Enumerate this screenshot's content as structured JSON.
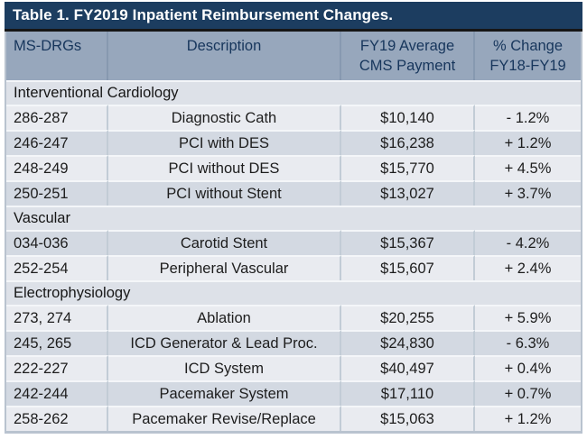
{
  "title": "Table 1. FY2019 Inpatient Reimbursement Changes.",
  "columns": [
    {
      "line1": "MS-DRGs",
      "line2": ""
    },
    {
      "line1": "Description",
      "line2": ""
    },
    {
      "line1": "FY19 Average",
      "line2": "CMS Payment"
    },
    {
      "line1": "% Change",
      "line2": "FY18-FY19"
    }
  ],
  "sections": [
    {
      "name": "Interventional Cardiology",
      "rows": [
        {
          "drg": "286-287",
          "description": "Diagnostic Cath",
          "payment": "$10,140",
          "change": "- 1.2%"
        },
        {
          "drg": "246-247",
          "description": "PCI with DES",
          "payment": "$16,238",
          "change": "+ 1.2%"
        },
        {
          "drg": "248-249",
          "description": "PCI without DES",
          "payment": "$15,770",
          "change": "+ 4.5%"
        },
        {
          "drg": "250-251",
          "description": "PCI without Stent",
          "payment": "$13,027",
          "change": "+ 3.7%"
        }
      ]
    },
    {
      "name": "Vascular",
      "rows": [
        {
          "drg": "034-036",
          "description": "Carotid Stent",
          "payment": "$15,367",
          "change": "- 4.2%"
        },
        {
          "drg": "252-254",
          "description": "Peripheral Vascular",
          "payment": "$15,607",
          "change": "+ 2.4%"
        }
      ]
    },
    {
      "name": "Electrophysiology",
      "rows": [
        {
          "drg": "273, 274",
          "description": "Ablation",
          "payment": "$20,255",
          "change": "+ 5.9%"
        },
        {
          "drg": "245, 265",
          "description": "ICD Generator & Lead Proc.",
          "payment": "$24,830",
          "change": "- 6.3%"
        },
        {
          "drg": "222-227",
          "description": "ICD System",
          "payment": "$40,497",
          "change": "+ 0.4%"
        },
        {
          "drg": "242-244",
          "description": "Pacemaker System",
          "payment": "$17,110",
          "change": "+ 0.7%"
        },
        {
          "drg": "258-262",
          "description": "Pacemaker Revise/Replace",
          "payment": "$15,063",
          "change": "+ 1.2%"
        }
      ]
    }
  ],
  "colors": {
    "title_bar": "#1c3d60",
    "title_text": "#ffffff",
    "header_bg": "#97a7bc",
    "header_text": "#17365c",
    "section_bg": "#dde1e8",
    "row_light": "#e9ebf0",
    "row_dark": "#d3d9e2",
    "outer_border": "#b9c3cf"
  },
  "chart_data": {
    "type": "table",
    "title": "Table 1. FY2019 Inpatient Reimbursement Changes.",
    "columns": [
      "MS-DRGs",
      "Description",
      "FY19 Average CMS Payment",
      "% Change FY18-FY19"
    ],
    "sections": [
      {
        "name": "Interventional Cardiology",
        "rows": [
          [
            "286-287",
            "Diagnostic Cath",
            "$10,140",
            "- 1.2%"
          ],
          [
            "246-247",
            "PCI with DES",
            "$16,238",
            "+ 1.2%"
          ],
          [
            "248-249",
            "PCI without DES",
            "$15,770",
            "+ 4.5%"
          ],
          [
            "250-251",
            "PCI without Stent",
            "$13,027",
            "+ 3.7%"
          ]
        ]
      },
      {
        "name": "Vascular",
        "rows": [
          [
            "034-036",
            "Carotid Stent",
            "$15,367",
            "- 4.2%"
          ],
          [
            "252-254",
            "Peripheral Vascular",
            "$15,607",
            "+ 2.4%"
          ]
        ]
      },
      {
        "name": "Electrophysiology",
        "rows": [
          [
            "273, 274",
            "Ablation",
            "$20,255",
            "+ 5.9%"
          ],
          [
            "245, 265",
            "ICD Generator & Lead Proc.",
            "$24,830",
            "- 6.3%"
          ],
          [
            "222-227",
            "ICD System",
            "$40,497",
            "+ 0.4%"
          ],
          [
            "242-244",
            "Pacemaker System",
            "$17,110",
            "+ 0.7%"
          ],
          [
            "258-262",
            "Pacemaker Revise/Replace",
            "$15,063",
            "+ 1.2%"
          ]
        ]
      }
    ]
  }
}
